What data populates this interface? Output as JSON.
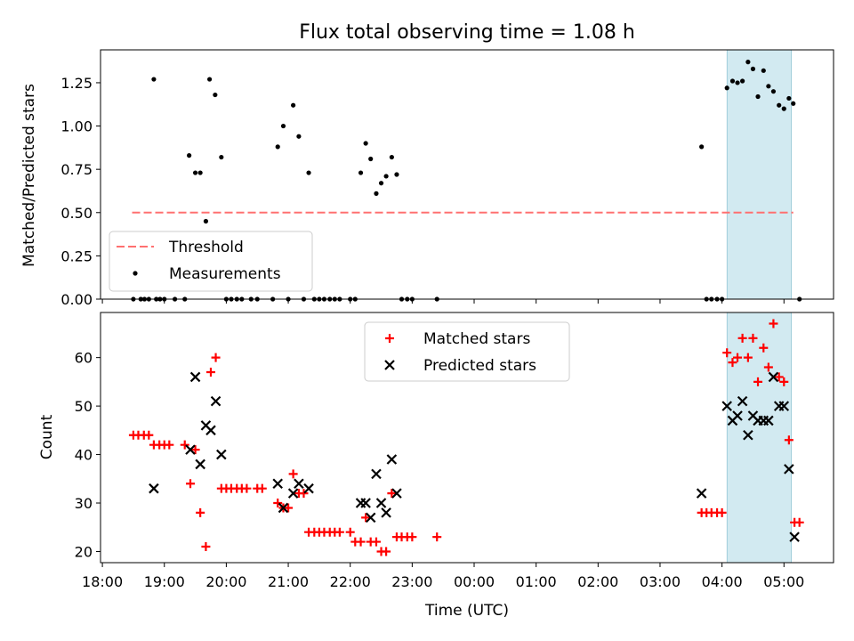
{
  "chart_data": [
    {
      "type": "scatter",
      "title": "Flux total observing time = 1.08 h",
      "ylabel": "Matched/Predicted stars",
      "xlabel": "",
      "ylim": [
        0,
        1.44
      ],
      "yticks": [
        0.0,
        0.25,
        0.5,
        0.75,
        1.0,
        1.25
      ],
      "ytick_labels": [
        "0.00",
        "0.25",
        "0.50",
        "0.75",
        "1.00",
        "1.25"
      ],
      "threshold": {
        "name": "Threshold",
        "value": 0.5,
        "x_start": 18.48,
        "x_end": 29.15,
        "color": "#ff7070"
      },
      "highlight_span": [
        28.08,
        29.12
      ],
      "highlight_color": "#add8e6",
      "legend": {
        "position": "lower-left",
        "entries": [
          "Threshold",
          "Measurements"
        ]
      },
      "series": [
        {
          "name": "Measurements",
          "marker": "dot",
          "color": "#000000",
          "points": [
            [
              18.5,
              0
            ],
            [
              18.62,
              0
            ],
            [
              18.68,
              0
            ],
            [
              18.75,
              0
            ],
            [
              18.83,
              1.27
            ],
            [
              18.87,
              0
            ],
            [
              18.93,
              0
            ],
            [
              19.0,
              0
            ],
            [
              19.17,
              0
            ],
            [
              19.33,
              0
            ],
            [
              19.4,
              0.83
            ],
            [
              19.5,
              0.73
            ],
            [
              19.58,
              0.73
            ],
            [
              19.67,
              0.45
            ],
            [
              19.73,
              1.27
            ],
            [
              19.82,
              1.18
            ],
            [
              19.92,
              0.82
            ],
            [
              20.0,
              0
            ],
            [
              20.08,
              0
            ],
            [
              20.17,
              0
            ],
            [
              20.25,
              0
            ],
            [
              20.4,
              0
            ],
            [
              20.5,
              0
            ],
            [
              20.75,
              0
            ],
            [
              20.83,
              0.88
            ],
            [
              20.92,
              1.0
            ],
            [
              21.0,
              0
            ],
            [
              21.08,
              1.12
            ],
            [
              21.17,
              0.94
            ],
            [
              21.25,
              0
            ],
            [
              21.33,
              0.73
            ],
            [
              21.42,
              0
            ],
            [
              21.5,
              0
            ],
            [
              21.58,
              0
            ],
            [
              21.67,
              0
            ],
            [
              21.75,
              0
            ],
            [
              21.83,
              0
            ],
            [
              22.0,
              0
            ],
            [
              22.08,
              0
            ],
            [
              22.17,
              0.73
            ],
            [
              22.25,
              0.9
            ],
            [
              22.33,
              0.81
            ],
            [
              22.42,
              0.61
            ],
            [
              22.5,
              0.67
            ],
            [
              22.58,
              0.71
            ],
            [
              22.67,
              0.82
            ],
            [
              22.75,
              0.72
            ],
            [
              22.83,
              0
            ],
            [
              22.92,
              0
            ],
            [
              23.0,
              0
            ],
            [
              23.4,
              0
            ],
            [
              27.67,
              0.88
            ],
            [
              27.75,
              0
            ],
            [
              27.83,
              0
            ],
            [
              27.92,
              0
            ],
            [
              28.0,
              0
            ],
            [
              28.08,
              1.22
            ],
            [
              28.17,
              1.26
            ],
            [
              28.25,
              1.25
            ],
            [
              28.33,
              1.26
            ],
            [
              28.42,
              1.37
            ],
            [
              28.5,
              1.33
            ],
            [
              28.58,
              1.17
            ],
            [
              28.67,
              1.32
            ],
            [
              28.75,
              1.23
            ],
            [
              28.83,
              1.2
            ],
            [
              28.92,
              1.12
            ],
            [
              29.0,
              1.1
            ],
            [
              29.08,
              1.16
            ],
            [
              29.15,
              1.13
            ],
            [
              29.25,
              0
            ]
          ]
        }
      ]
    },
    {
      "type": "scatter",
      "ylabel": "Count",
      "xlabel": "Time (UTC)",
      "xlim": [
        17.97,
        29.8
      ],
      "ylim": [
        17.7,
        69.3
      ],
      "yticks": [
        20,
        30,
        40,
        50,
        60
      ],
      "xticks": [
        18,
        19,
        20,
        21,
        22,
        23,
        24,
        25,
        26,
        27,
        28,
        29
      ],
      "xtick_labels": [
        "18:00",
        "19:00",
        "20:00",
        "21:00",
        "22:00",
        "23:00",
        "00:00",
        "01:00",
        "02:00",
        "03:00",
        "04:00",
        "05:00"
      ],
      "highlight_span": [
        28.08,
        29.12
      ],
      "highlight_color": "#add8e6",
      "legend": {
        "position": "upper-center",
        "entries": [
          "Matched stars",
          "Predicted stars"
        ]
      },
      "series": [
        {
          "name": "Matched stars",
          "marker": "plus",
          "color": "#ff0000",
          "points": [
            [
              18.5,
              44
            ],
            [
              18.58,
              44
            ],
            [
              18.67,
              44
            ],
            [
              18.75,
              44
            ],
            [
              18.83,
              42
            ],
            [
              18.92,
              42
            ],
            [
              19.0,
              42
            ],
            [
              19.08,
              42
            ],
            [
              19.33,
              42
            ],
            [
              19.42,
              34
            ],
            [
              19.5,
              41
            ],
            [
              19.58,
              28
            ],
            [
              19.67,
              21
            ],
            [
              19.75,
              57
            ],
            [
              19.83,
              60
            ],
            [
              19.92,
              33
            ],
            [
              20.0,
              33
            ],
            [
              20.08,
              33
            ],
            [
              20.17,
              33
            ],
            [
              20.25,
              33
            ],
            [
              20.33,
              33
            ],
            [
              20.5,
              33
            ],
            [
              20.58,
              33
            ],
            [
              20.83,
              30
            ],
            [
              20.92,
              29
            ],
            [
              21.0,
              29
            ],
            [
              21.08,
              36
            ],
            [
              21.17,
              32
            ],
            [
              21.25,
              32
            ],
            [
              21.33,
              24
            ],
            [
              21.42,
              24
            ],
            [
              21.5,
              24
            ],
            [
              21.58,
              24
            ],
            [
              21.67,
              24
            ],
            [
              21.75,
              24
            ],
            [
              21.83,
              24
            ],
            [
              22.0,
              24
            ],
            [
              22.08,
              22
            ],
            [
              22.17,
              22
            ],
            [
              22.25,
              27
            ],
            [
              22.33,
              22
            ],
            [
              22.42,
              22
            ],
            [
              22.5,
              20
            ],
            [
              22.58,
              20
            ],
            [
              22.67,
              32
            ],
            [
              22.75,
              23
            ],
            [
              22.83,
              23
            ],
            [
              22.92,
              23
            ],
            [
              23.0,
              23
            ],
            [
              23.4,
              23
            ],
            [
              27.67,
              28
            ],
            [
              27.75,
              28
            ],
            [
              27.83,
              28
            ],
            [
              27.92,
              28
            ],
            [
              28.0,
              28
            ],
            [
              28.08,
              61
            ],
            [
              28.17,
              59
            ],
            [
              28.25,
              60
            ],
            [
              28.33,
              64
            ],
            [
              28.42,
              60
            ],
            [
              28.5,
              64
            ],
            [
              28.58,
              55
            ],
            [
              28.67,
              62
            ],
            [
              28.75,
              58
            ],
            [
              28.83,
              67
            ],
            [
              28.92,
              56
            ],
            [
              29.0,
              55
            ],
            [
              29.08,
              43
            ],
            [
              29.17,
              26
            ],
            [
              29.25,
              26
            ]
          ]
        },
        {
          "name": "Predicted stars",
          "marker": "x",
          "color": "#000000",
          "points": [
            [
              18.83,
              33
            ],
            [
              19.42,
              41
            ],
            [
              19.5,
              56
            ],
            [
              19.58,
              38
            ],
            [
              19.67,
              46
            ],
            [
              19.75,
              45
            ],
            [
              19.83,
              51
            ],
            [
              19.92,
              40
            ],
            [
              20.83,
              34
            ],
            [
              20.92,
              29
            ],
            [
              21.08,
              32
            ],
            [
              21.17,
              34
            ],
            [
              21.33,
              33
            ],
            [
              22.17,
              30
            ],
            [
              22.25,
              30
            ],
            [
              22.33,
              27
            ],
            [
              22.42,
              36
            ],
            [
              22.5,
              30
            ],
            [
              22.58,
              28
            ],
            [
              22.67,
              39
            ],
            [
              22.75,
              32
            ],
            [
              27.67,
              32
            ],
            [
              28.08,
              50
            ],
            [
              28.17,
              47
            ],
            [
              28.25,
              48
            ],
            [
              28.33,
              51
            ],
            [
              28.42,
              44
            ],
            [
              28.5,
              48
            ],
            [
              28.58,
              47
            ],
            [
              28.67,
              47
            ],
            [
              28.75,
              47
            ],
            [
              28.83,
              56
            ],
            [
              28.92,
              50
            ],
            [
              29.0,
              50
            ],
            [
              29.08,
              37
            ],
            [
              29.17,
              23
            ]
          ]
        }
      ]
    }
  ]
}
